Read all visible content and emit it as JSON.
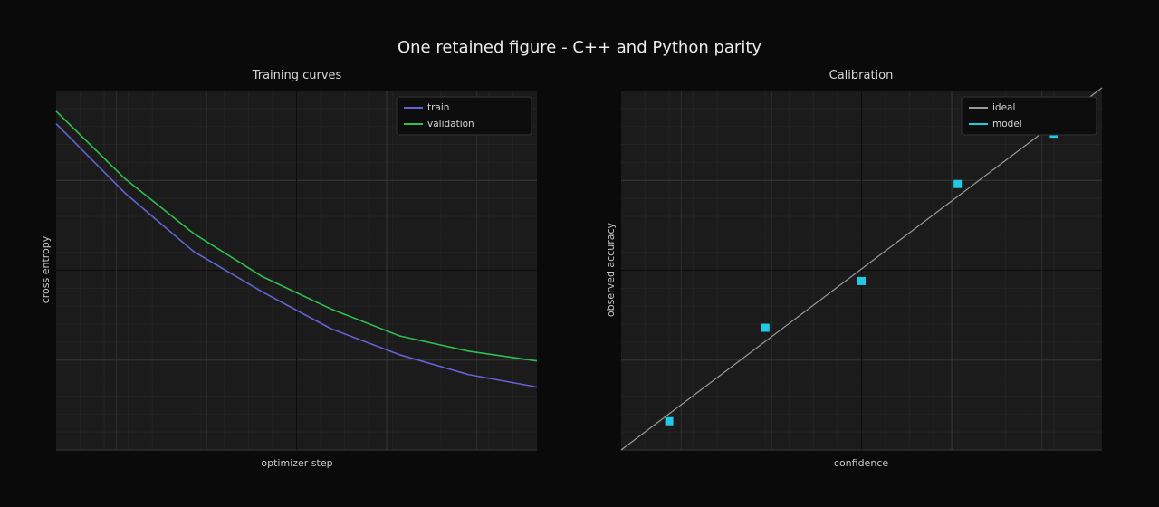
{
  "figure": {
    "title": "One retained figure - C++ and Python parity"
  },
  "colors": {
    "background": "#0a0a0a",
    "plot_bg": "#1b1b1b",
    "train": "#6363d6",
    "validation": "#2fbf4f",
    "ideal": "#9a9a9a",
    "model": "#22c8e6"
  },
  "chart_data": [
    {
      "type": "line",
      "title": "Training curves",
      "xlabel": "optimizer step",
      "ylabel": "cross entropy",
      "xlim": [
        0,
        7
      ],
      "ylim": [
        0,
        4
      ],
      "grid": true,
      "legend": "top-right",
      "x": [
        0,
        1,
        2,
        3,
        4,
        5,
        6,
        7
      ],
      "series": [
        {
          "name": "train",
          "values": [
            3.63,
            2.86,
            2.21,
            1.76,
            1.35,
            1.06,
            0.84,
            0.7
          ]
        },
        {
          "name": "validation",
          "values": [
            3.77,
            3.02,
            2.41,
            1.93,
            1.57,
            1.27,
            1.1,
            0.99
          ]
        }
      ]
    },
    {
      "type": "scatter",
      "title": "Calibration",
      "xlabel": "confidence",
      "ylabel": "observed accuracy",
      "xlim": [
        0,
        1
      ],
      "ylim": [
        0,
        1
      ],
      "grid": true,
      "legend": "top-right",
      "series": [
        {
          "name": "ideal",
          "kind": "line",
          "x": [
            0,
            1
          ],
          "y": [
            0,
            1
          ]
        },
        {
          "name": "model",
          "kind": "scatter",
          "x": [
            0.1,
            0.3,
            0.5,
            0.7,
            0.9
          ],
          "y": [
            0.08,
            0.34,
            0.47,
            0.74,
            0.88
          ]
        }
      ]
    }
  ]
}
